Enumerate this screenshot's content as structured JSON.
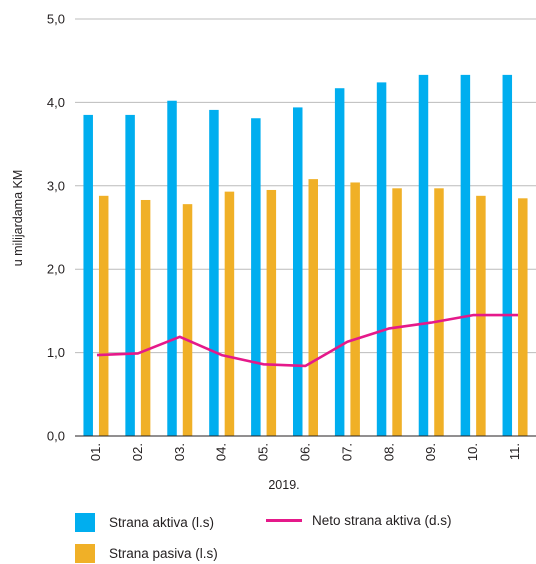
{
  "chart_data": {
    "type": "bar",
    "categories": [
      "01.",
      "02.",
      "03.",
      "04.",
      "05.",
      "06.",
      "07.",
      "08.",
      "09.",
      "10.",
      "11."
    ],
    "xlabel": "2019.",
    "ylabel": "u milijardama  KM",
    "ylim": [
      0,
      5
    ],
    "yticks": [
      "0,0",
      "1,0",
      "2,0",
      "3,0",
      "4,0",
      "5,0"
    ],
    "grid": true,
    "legend_position": "bottom",
    "series": [
      {
        "name": "Strana  aktiva (l.s)",
        "type": "bar",
        "color": "#00aeef",
        "values": [
          3.85,
          3.85,
          4.02,
          3.91,
          3.81,
          3.94,
          4.17,
          4.24,
          4.33,
          4.33,
          4.33
        ]
      },
      {
        "name": "Strana pasiva (l.s)",
        "type": "bar",
        "color": "#f0b027",
        "values": [
          2.88,
          2.83,
          2.78,
          2.93,
          2.95,
          3.08,
          3.04,
          2.97,
          2.97,
          2.88,
          2.85
        ]
      },
      {
        "name": "Neto strana aktiva (d.s)",
        "type": "line",
        "color": "#e5198a",
        "values": [
          0.97,
          0.99,
          1.19,
          0.97,
          0.86,
          0.84,
          1.13,
          1.29,
          1.36,
          1.45,
          1.45
        ]
      }
    ]
  }
}
